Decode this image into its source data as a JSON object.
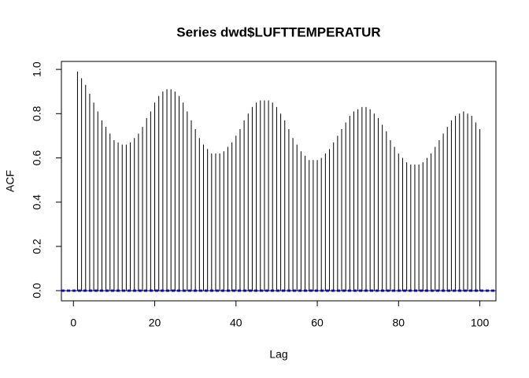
{
  "chart_data": {
    "type": "acf",
    "title": "Series dwd$LUFTTEMPERATUR",
    "x_label": "Lag",
    "y_label": "ACF",
    "x": [
      1,
      2,
      3,
      4,
      5,
      6,
      7,
      8,
      9,
      10,
      11,
      12,
      13,
      14,
      15,
      16,
      17,
      18,
      19,
      20,
      21,
      22,
      23,
      24,
      25,
      26,
      27,
      28,
      29,
      30,
      31,
      32,
      33,
      34,
      35,
      36,
      37,
      38,
      39,
      40,
      41,
      42,
      43,
      44,
      45,
      46,
      47,
      48,
      49,
      50,
      51,
      52,
      53,
      54,
      55,
      56,
      57,
      58,
      59,
      60,
      61,
      62,
      63,
      64,
      65,
      66,
      67,
      68,
      69,
      70,
      71,
      72,
      73,
      74,
      75,
      76,
      77,
      78,
      79,
      80,
      81,
      82,
      83,
      84,
      85,
      86,
      87,
      88,
      89,
      90,
      91,
      92,
      93,
      94,
      95,
      96,
      97,
      98,
      99,
      100
    ],
    "values": [
      0.99,
      0.96,
      0.93,
      0.89,
      0.85,
      0.81,
      0.77,
      0.74,
      0.71,
      0.68,
      0.67,
      0.66,
      0.66,
      0.67,
      0.69,
      0.71,
      0.74,
      0.78,
      0.81,
      0.85,
      0.88,
      0.9,
      0.91,
      0.91,
      0.9,
      0.88,
      0.85,
      0.81,
      0.77,
      0.73,
      0.69,
      0.66,
      0.64,
      0.62,
      0.62,
      0.62,
      0.63,
      0.65,
      0.67,
      0.7,
      0.73,
      0.77,
      0.8,
      0.83,
      0.85,
      0.86,
      0.86,
      0.86,
      0.85,
      0.83,
      0.8,
      0.77,
      0.73,
      0.69,
      0.66,
      0.63,
      0.61,
      0.59,
      0.59,
      0.59,
      0.6,
      0.62,
      0.64,
      0.67,
      0.7,
      0.73,
      0.76,
      0.79,
      0.81,
      0.82,
      0.83,
      0.83,
      0.82,
      0.8,
      0.78,
      0.75,
      0.72,
      0.68,
      0.65,
      0.62,
      0.6,
      0.58,
      0.57,
      0.57,
      0.57,
      0.58,
      0.6,
      0.62,
      0.65,
      0.68,
      0.71,
      0.74,
      0.77,
      0.79,
      0.8,
      0.81,
      0.8,
      0.79,
      0.76,
      0.73
    ],
    "color": "#000000",
    "ci": [
      0.0035,
      -0.0035
    ],
    "ci_color": "#0000ff",
    "xlim": [
      -2.96,
      103.96
    ],
    "xticks": [
      0,
      20,
      40,
      60,
      80,
      100
    ],
    "ylim": [
      -0.046,
      1.036
    ],
    "yticks": [
      {
        "value": 0,
        "label": "0.0"
      },
      0.2,
      0.4,
      0.6,
      0.8,
      {
        "value": 1,
        "label": "1.0"
      }
    ]
  }
}
